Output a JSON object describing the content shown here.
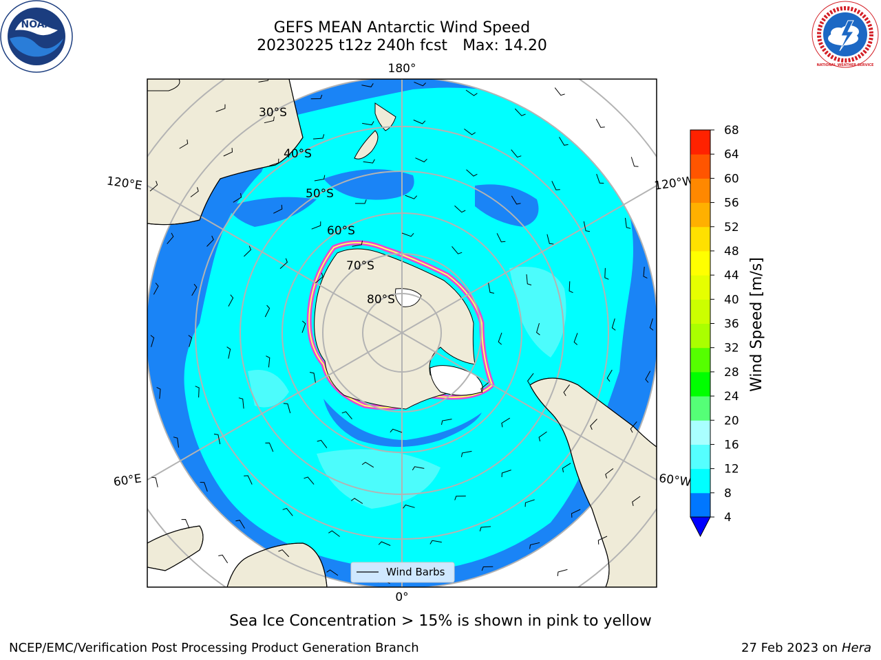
{
  "header": {
    "title_line1": "GEFS MEAN Antarctic Wind Speed",
    "title_line2_left": "20230225 t12z 240h fcst",
    "title_line2_right": "Max: 14.20"
  },
  "logos": {
    "noaa_text": "NOAA",
    "nws_text": "NATIONAL WEATHER SERVICE"
  },
  "map": {
    "projection": "south-polar-stereographic",
    "longitude_labels": [
      "180°",
      "120°E",
      "120°W",
      "60°E",
      "60°W",
      "0°"
    ],
    "latitude_labels": [
      "30°S",
      "40°S",
      "50°S",
      "60°S",
      "70°S",
      "80°S"
    ],
    "legend_label": "Wind Barbs",
    "colors": {
      "land": "#efebd8",
      "wind_4_8": "#1a84f6",
      "wind_8_12": "#00ffff",
      "wind_12_16": "#4cfcfc",
      "sea_ice_edge": "#ff33cc",
      "sea_ice_interior": "#ffffff",
      "gridline": "#b3b3b3"
    }
  },
  "colorbar": {
    "label": "Wind Speed [m/s]",
    "ticks": [
      "4",
      "8",
      "12",
      "16",
      "20",
      "24",
      "28",
      "32",
      "36",
      "40",
      "44",
      "48",
      "52",
      "56",
      "60",
      "64",
      "68"
    ],
    "colors": [
      "#0077ff",
      "#00ffff",
      "#55ffff",
      "#a9ffff",
      "#55ff77",
      "#00ff00",
      "#55ff00",
      "#aaff00",
      "#ccff00",
      "#e6ff00",
      "#ffff00",
      "#ffe000",
      "#ffb000",
      "#ff8800",
      "#ff5500",
      "#ff2200"
    ],
    "under_color": "#0000ff"
  },
  "footer": {
    "note": "Sea Ice Concentration > 15% is shown in pink to yellow",
    "credit_left": "NCEP/EMC/Verification Post Processing Product Generation Branch",
    "credit_right_prefix": "27 Feb 2023 on",
    "credit_right_host": "Hera"
  }
}
